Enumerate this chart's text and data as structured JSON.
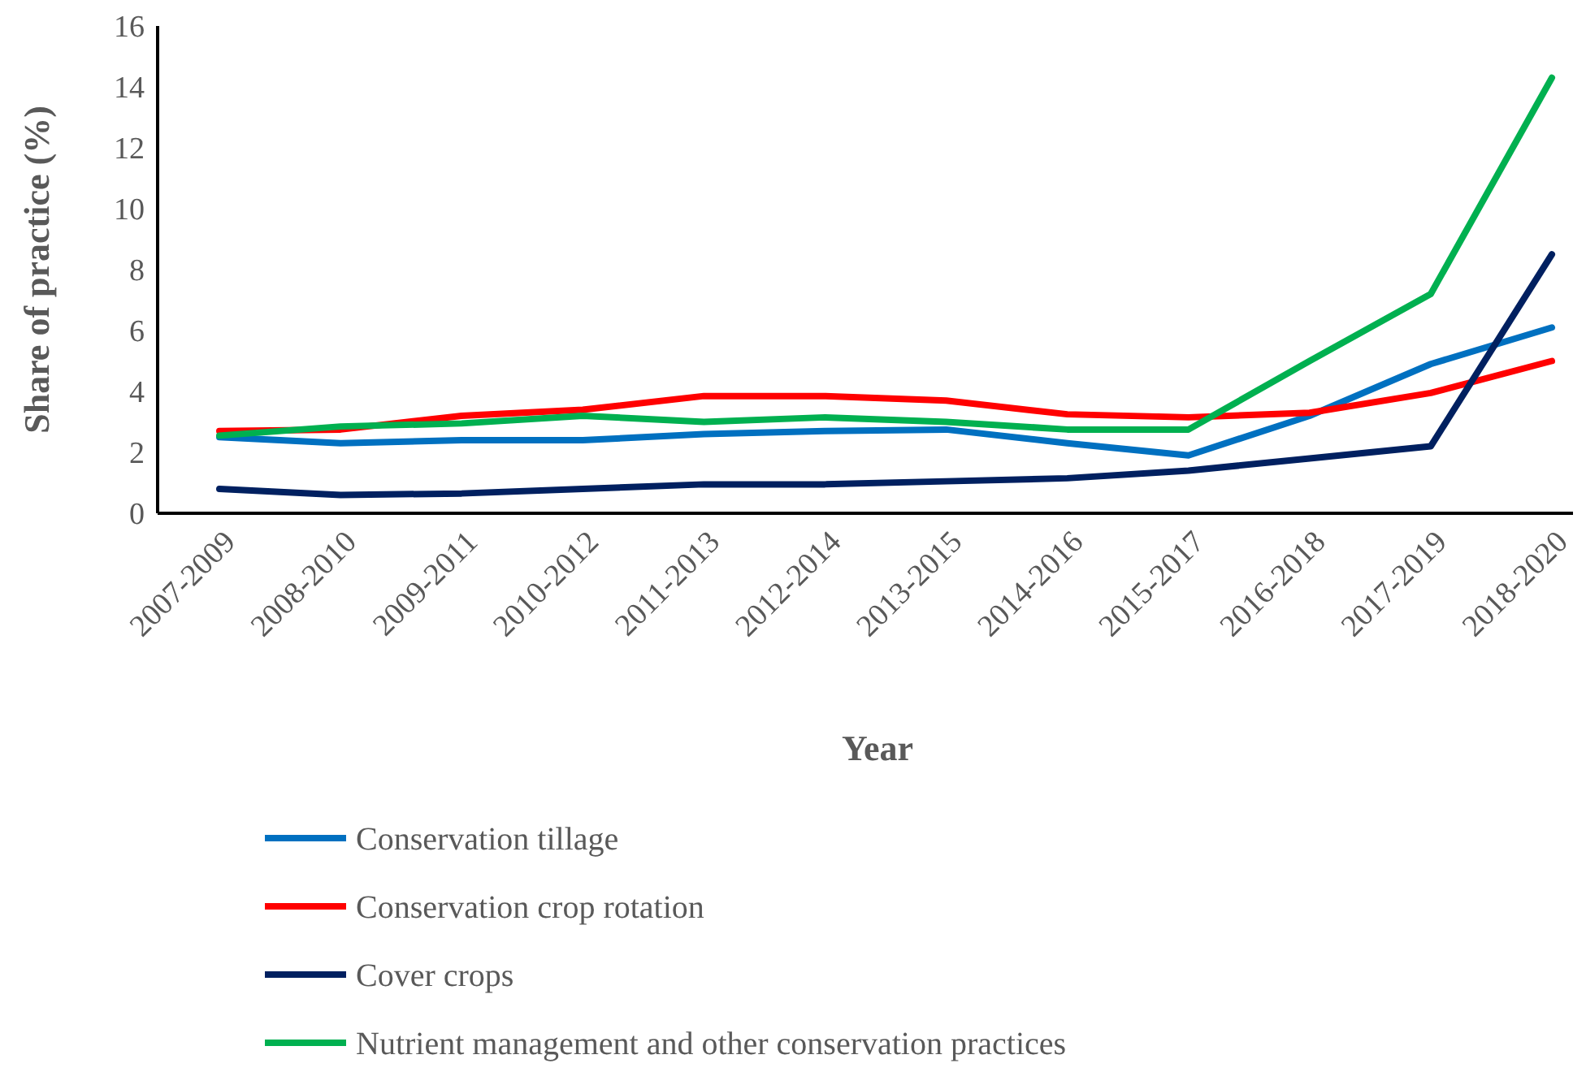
{
  "chart_data": {
    "type": "line",
    "xlabel": "Year",
    "ylabel": "Share of practice (%)",
    "categories": [
      "2007-2009",
      "2008-2010",
      "2009-2011",
      "2010-2012",
      "2011-2013",
      "2012-2014",
      "2013-2015",
      "2014-2016",
      "2015-2017",
      "2016-2018",
      "2017-2019",
      "2018-2020"
    ],
    "ylim": [
      0,
      16
    ],
    "yticks": [
      0,
      2,
      4,
      6,
      8,
      10,
      12,
      14,
      16
    ],
    "grid": false,
    "legend": "bottom",
    "marker": "none",
    "line_style": "solid",
    "series": [
      {
        "name": "Conservation tillage",
        "color": "#0070c0",
        "values": [
          2.5,
          2.3,
          2.4,
          2.4,
          2.6,
          2.7,
          2.75,
          2.3,
          1.9,
          3.2,
          4.9,
          6.1
        ]
      },
      {
        "name": "Conservation crop rotation",
        "color": "#ff0000",
        "values": [
          2.7,
          2.75,
          3.2,
          3.4,
          3.85,
          3.85,
          3.7,
          3.25,
          3.15,
          3.3,
          3.95,
          5.0
        ]
      },
      {
        "name": "Cover crops",
        "color": "#002060",
        "values": [
          0.8,
          0.6,
          0.65,
          0.8,
          0.95,
          0.95,
          1.05,
          1.15,
          1.4,
          1.8,
          2.2,
          8.5
        ]
      },
      {
        "name": "Nutrient management and other conservation practices",
        "color": "#00b050",
        "values": [
          2.55,
          2.85,
          2.95,
          3.2,
          3.0,
          3.15,
          3.0,
          2.75,
          2.75,
          5.0,
          7.2,
          14.3
        ]
      }
    ]
  }
}
